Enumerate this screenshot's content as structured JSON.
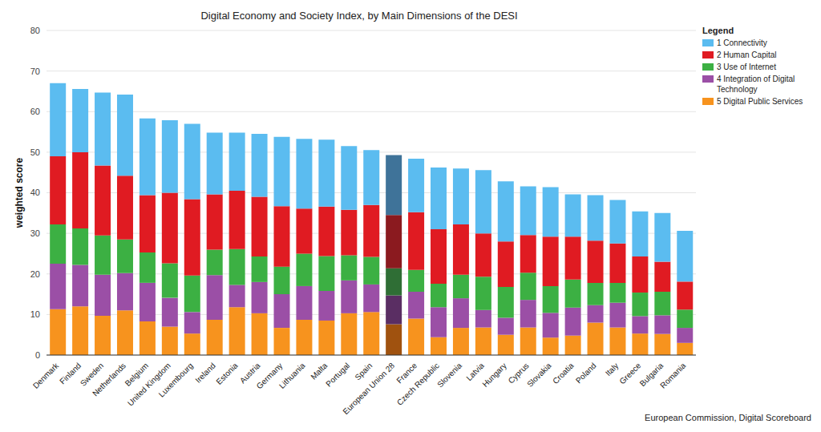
{
  "chart_data": {
    "type": "bar",
    "title": "Digital Economy and Society Index, by Main Dimensions of the DESI",
    "y_label": "weighted score",
    "source": "European Commission, Digital Scoreboard",
    "legend_title": "Legend",
    "legend": "upper right",
    "stacked": true,
    "grid": true,
    "ylim": [
      0,
      80
    ],
    "yticks": [
      0,
      10,
      20,
      30,
      40,
      50,
      60,
      70,
      80
    ],
    "categories": [
      "Denmark",
      "Finland",
      "Sweden",
      "Netherlands",
      "Belgium",
      "United Kingdom",
      "Luxembourg",
      "Ireland",
      "Estonia",
      "Austria",
      "Germany",
      "Lithuania",
      "Malta",
      "Portugal",
      "Spain",
      "European Union 28",
      "France",
      "Czech Republic",
      "Slovenia",
      "Latvia",
      "Hungary",
      "Cyprus",
      "Slovakia",
      "Croatia",
      "Poland",
      "Italy",
      "Greece",
      "Bulgaria",
      "Romania"
    ],
    "series": [
      {
        "name": "1 Connectivity",
        "color": "#5bbcf0",
        "colors": [
          "#5bbcf0",
          "#5bbcf0",
          "#5bbcf0",
          "#5bbcf0",
          "#5bbcf0",
          "#5bbcf0",
          "#5bbcf0",
          "#5bbcf0",
          "#5bbcf0",
          "#5bbcf0",
          "#5bbcf0",
          "#5bbcf0",
          "#5bbcf0",
          "#5bbcf0",
          "#5bbcf0",
          "#3f7399",
          "#5bbcf0",
          "#5bbcf0",
          "#5bbcf0",
          "#5bbcf0",
          "#5bbcf0",
          "#5bbcf0",
          "#5bbcf0",
          "#5bbcf0",
          "#5bbcf0",
          "#5bbcf0",
          "#5bbcf0",
          "#5bbcf0",
          "#5bbcf0"
        ],
        "values": [
          18.0,
          15.6,
          18.0,
          20.0,
          18.9,
          17.9,
          18.6,
          15.2,
          14.3,
          15.5,
          17.1,
          17.2,
          16.5,
          15.7,
          13.5,
          14.8,
          13.2,
          15.2,
          13.8,
          15.6,
          14.8,
          12.0,
          12.2,
          10.4,
          11.2,
          10.7,
          11.1,
          12.0,
          12.5
        ]
      },
      {
        "name": "2 Human Capital",
        "color": "#e01b22",
        "colors": [
          "#e01b22",
          "#e01b22",
          "#e01b22",
          "#e01b22",
          "#e01b22",
          "#e01b22",
          "#e01b22",
          "#e01b22",
          "#e01b22",
          "#e01b22",
          "#e01b22",
          "#e01b22",
          "#e01b22",
          "#e01b22",
          "#e01b22",
          "#8b1a1f",
          "#e01b22",
          "#e01b22",
          "#e01b22",
          "#e01b22",
          "#e01b22",
          "#e01b22",
          "#e01b22",
          "#e01b22",
          "#e01b22",
          "#e01b22",
          "#e01b22",
          "#e01b22",
          "#e01b22"
        ],
        "values": [
          16.8,
          18.8,
          17.2,
          15.7,
          14.1,
          17.4,
          18.8,
          13.6,
          14.4,
          14.7,
          14.9,
          11.1,
          12.2,
          11.2,
          12.8,
          13.1,
          14.2,
          13.4,
          12.4,
          10.7,
          11.2,
          9.3,
          12.2,
          10.6,
          10.4,
          9.7,
          8.9,
          7.4,
          6.9
        ]
      },
      {
        "name": "3 Use of Internet",
        "color": "#3cb043",
        "colors": [
          "#3cb043",
          "#3cb043",
          "#3cb043",
          "#3cb043",
          "#3cb043",
          "#3cb043",
          "#3cb043",
          "#3cb043",
          "#3cb043",
          "#3cb043",
          "#3cb043",
          "#3cb043",
          "#3cb043",
          "#3cb043",
          "#3cb043",
          "#2f6e35",
          "#3cb043",
          "#3cb043",
          "#3cb043",
          "#3cb043",
          "#3cb043",
          "#3cb043",
          "#3cb043",
          "#3cb043",
          "#3cb043",
          "#3cb043",
          "#3cb043",
          "#3cb043",
          "#3cb043"
        ],
        "values": [
          9.7,
          9.0,
          9.7,
          8.3,
          7.5,
          8.5,
          9.0,
          6.3,
          8.8,
          6.3,
          6.8,
          8.0,
          8.6,
          6.2,
          6.8,
          6.7,
          5.4,
          5.8,
          5.8,
          8.2,
          7.6,
          6.7,
          6.6,
          6.9,
          5.5,
          4.9,
          5.8,
          5.8,
          4.5
        ]
      },
      {
        "name": "4 Integration of Digital Technology",
        "color": "#9b4fa6",
        "colors": [
          "#9b4fa6",
          "#9b4fa6",
          "#9b4fa6",
          "#9b4fa6",
          "#9b4fa6",
          "#9b4fa6",
          "#9b4fa6",
          "#9b4fa6",
          "#9b4fa6",
          "#9b4fa6",
          "#9b4fa6",
          "#9b4fa6",
          "#9b4fa6",
          "#9b4fa6",
          "#9b4fa6",
          "#5a2e63",
          "#9b4fa6",
          "#9b4fa6",
          "#9b4fa6",
          "#9b4fa6",
          "#9b4fa6",
          "#9b4fa6",
          "#9b4fa6",
          "#9b4fa6",
          "#9b4fa6",
          "#9b4fa6",
          "#9b4fa6",
          "#9b4fa6",
          "#9b4fa6"
        ],
        "values": [
          11.2,
          10.2,
          10.1,
          9.2,
          9.5,
          7.1,
          5.3,
          11.0,
          5.5,
          7.7,
          8.3,
          8.3,
          7.3,
          8.1,
          6.8,
          7.1,
          6.6,
          7.4,
          7.3,
          4.3,
          4.2,
          6.8,
          6.1,
          6.9,
          4.3,
          6.1,
          4.3,
          4.6,
          3.7
        ]
      },
      {
        "name": "5 Digital Public Services",
        "color": "#f7931e",
        "colors": [
          "#f7931e",
          "#f7931e",
          "#f7931e",
          "#f7931e",
          "#f7931e",
          "#f7931e",
          "#f7931e",
          "#f7931e",
          "#f7931e",
          "#f7931e",
          "#f7931e",
          "#f7931e",
          "#f7931e",
          "#f7931e",
          "#f7931e",
          "#a0520f",
          "#f7931e",
          "#f7931e",
          "#f7931e",
          "#f7931e",
          "#f7931e",
          "#f7931e",
          "#f7931e",
          "#f7931e",
          "#f7931e",
          "#f7931e",
          "#f7931e",
          "#f7931e",
          "#f7931e"
        ],
        "values": [
          11.3,
          12.0,
          9.7,
          11.0,
          8.3,
          7.0,
          5.3,
          8.7,
          11.8,
          10.3,
          6.7,
          8.7,
          8.5,
          10.3,
          10.6,
          7.6,
          9.0,
          4.4,
          6.7,
          6.8,
          5.0,
          6.8,
          4.3,
          4.8,
          8.0,
          6.8,
          5.3,
          5.2,
          3.0
        ]
      }
    ]
  }
}
